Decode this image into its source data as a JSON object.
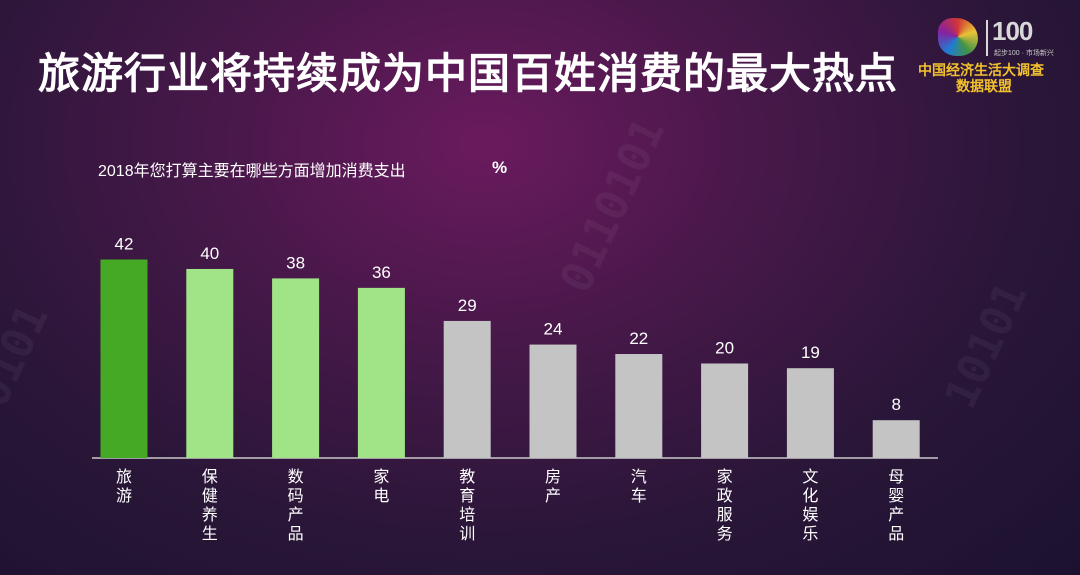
{
  "header": {
    "title": "旅游行业将持续成为中国百姓消费的最大热点"
  },
  "logo": {
    "badge": "100",
    "slogan": "起步100 · 市场新兴",
    "line1": "中国经济生活大调查",
    "line2": "数据联盟"
  },
  "chart_data": {
    "type": "bar",
    "title": "2018年您打算主要在哪些方面增加消费支出",
    "unit": "%",
    "categories": [
      "旅游",
      "保健养生",
      "数码产品",
      "家电",
      "教育培训",
      "房产",
      "汽车",
      "家政服务",
      "文化娱乐",
      "母婴产品"
    ],
    "values": [
      42,
      40,
      38,
      36,
      29,
      24,
      22,
      20,
      19,
      8
    ],
    "ylim": [
      0,
      50
    ],
    "grid": false,
    "colors": {
      "top": "#46a926",
      "highlight": "#a1e487",
      "default": "#c4c4c4",
      "axis": "#c8c8c8",
      "label": "#ffffff"
    },
    "color_groups": [
      "top",
      "highlight",
      "highlight",
      "highlight",
      "default",
      "default",
      "default",
      "default",
      "default",
      "default"
    ]
  }
}
